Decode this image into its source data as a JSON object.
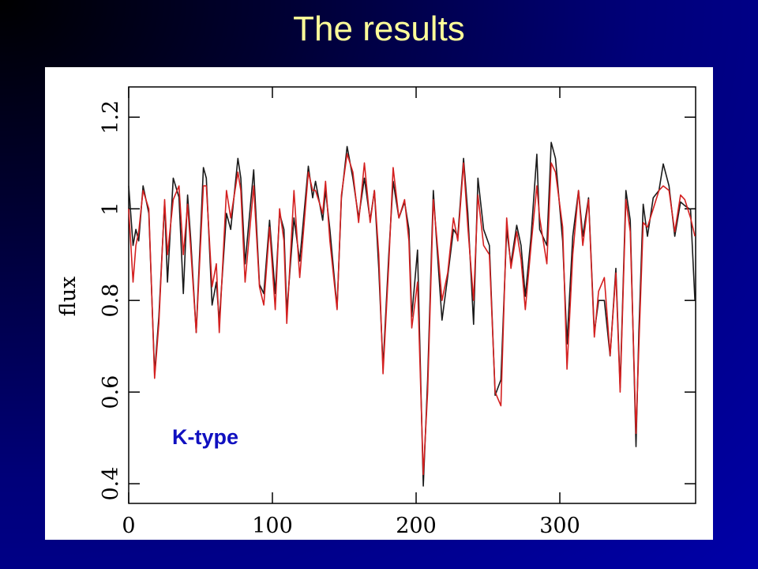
{
  "chart_data": {
    "type": "line",
    "title": "The results",
    "y_label": "flux",
    "annotation": "K-type",
    "xlim": [
      0,
      394.5
    ],
    "ylim": [
      0.357,
      1.266
    ],
    "xticks": [
      0,
      100,
      200,
      300
    ],
    "yticks": [
      0.4,
      0.6,
      0.8,
      1,
      1.2
    ],
    "x": [
      0,
      3,
      5,
      7,
      10,
      14,
      18,
      21,
      25,
      27,
      31,
      35,
      38,
      41,
      43,
      47,
      52,
      54,
      58,
      61,
      63,
      68,
      71,
      76,
      78,
      81,
      87,
      91,
      94,
      98,
      102,
      105,
      108,
      110,
      115,
      119,
      125,
      128,
      130,
      135,
      137,
      140,
      145,
      148,
      152,
      156,
      160,
      164,
      168,
      171,
      174,
      177,
      181,
      184,
      188,
      192,
      195,
      197,
      201,
      205,
      208,
      212,
      214,
      218,
      222,
      226,
      229,
      233,
      236,
      240,
      243,
      247,
      251,
      255,
      259,
      263,
      266,
      270,
      273,
      276,
      280,
      284,
      286,
      291,
      294,
      297,
      302,
      305,
      309,
      313,
      316,
      320,
      324,
      327,
      331,
      335,
      339,
      342,
      346,
      349,
      353,
      355,
      358,
      361,
      365,
      369,
      372,
      376,
      380,
      384,
      387,
      391,
      394
    ],
    "series": [
      {
        "color": "#1a1a1a",
        "values": [
          1.05,
          0.92,
          0.955,
          0.93,
          1.05,
          0.99,
          0.64,
          0.765,
          1.015,
          0.84,
          1.067,
          1.025,
          0.815,
          1.03,
          0.94,
          0.73,
          1.09,
          1.067,
          0.79,
          0.84,
          0.755,
          0.99,
          0.955,
          1.11,
          1.067,
          0.88,
          1.085,
          0.835,
          0.815,
          0.975,
          0.815,
          0.99,
          0.955,
          0.774,
          0.98,
          0.886,
          1.093,
          1.024,
          1.06,
          0.975,
          1.04,
          0.955,
          0.783,
          1.024,
          1.136,
          1.067,
          0.98,
          1.067,
          0.975,
          1.04,
          0.87,
          0.655,
          0.9,
          1.06,
          0.98,
          1.015,
          0.955,
          0.765,
          0.91,
          0.395,
          0.627,
          1.04,
          0.94,
          0.757,
          0.852,
          0.955,
          0.94,
          1.11,
          0.99,
          0.748,
          1.067,
          0.955,
          0.92,
          0.593,
          0.627,
          0.955,
          0.88,
          0.964,
          0.92,
          0.809,
          0.94,
          1.119,
          0.955,
          0.92,
          1.145,
          1.11,
          0.93,
          0.705,
          0.94,
          1.04,
          0.94,
          1.024,
          0.73,
          0.8,
          0.8,
          0.679,
          0.87,
          0.61,
          1.04,
          0.975,
          0.481,
          0.73,
          1.01,
          0.94,
          1.024,
          1.04,
          1.098,
          1.05,
          0.94,
          1.015,
          1.007,
          0.998,
          0.8
        ]
      },
      {
        "color": "#d42020",
        "values": [
          1.0,
          0.84,
          0.92,
          0.95,
          1.04,
          1.0,
          0.63,
          0.75,
          1.02,
          0.9,
          1.02,
          1.05,
          0.9,
          1.01,
          0.92,
          0.73,
          1.05,
          1.05,
          0.83,
          0.88,
          0.73,
          1.04,
          0.98,
          1.08,
          1.04,
          0.84,
          1.05,
          0.83,
          0.79,
          0.96,
          0.78,
          1.0,
          0.93,
          0.75,
          1.04,
          0.85,
          1.08,
          1.04,
          1.04,
          0.99,
          1.06,
          0.93,
          0.78,
          1.03,
          1.12,
          1.08,
          0.97,
          1.1,
          0.97,
          1.04,
          0.9,
          0.64,
          0.88,
          1.09,
          0.98,
          1.02,
          0.93,
          0.74,
          0.84,
          0.42,
          0.6,
          1.02,
          0.95,
          0.8,
          0.86,
          0.98,
          0.93,
          1.1,
          0.96,
          0.8,
          1.03,
          0.92,
          0.9,
          0.6,
          0.57,
          0.98,
          0.87,
          0.95,
          0.89,
          0.78,
          0.92,
          1.05,
          0.98,
          0.88,
          1.1,
          1.08,
          0.96,
          0.65,
          0.9,
          1.04,
          0.92,
          1.02,
          0.72,
          0.82,
          0.85,
          0.68,
          0.86,
          0.6,
          1.02,
          0.95,
          0.51,
          0.7,
          0.97,
          0.96,
          1.0,
          1.04,
          1.05,
          1.04,
          0.95,
          1.03,
          1.02,
          0.98,
          0.94
        ]
      }
    ]
  }
}
